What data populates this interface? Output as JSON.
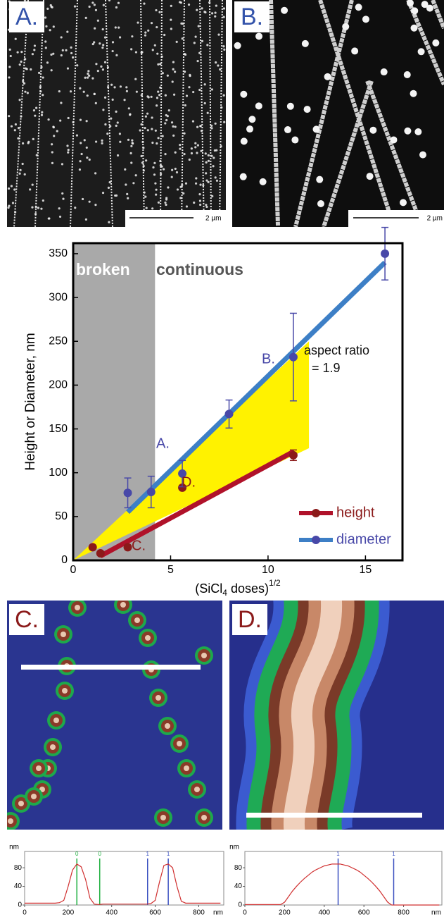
{
  "images": [
    {
      "label": "A.",
      "scale_bar": "2 µm"
    },
    {
      "label": "B.",
      "scale_bar": "2 µm"
    },
    {
      "label": "C."
    },
    {
      "label": "D."
    }
  ],
  "chart_data": [
    {
      "type": "scatter",
      "xlabel": [
        "(SiCl",
        "4",
        " doses)",
        "1/2"
      ],
      "ylabel": "Height or Diameter, nm",
      "xlim": [
        0,
        16.9
      ],
      "ylim": [
        0,
        362
      ],
      "xticks": [
        0,
        5,
        10,
        15
      ],
      "yticks": [
        0,
        50,
        100,
        150,
        200,
        250,
        300,
        350
      ],
      "broken_region": {
        "xlim": [
          0,
          4.2
        ],
        "color": "#a9a9a9"
      },
      "region_labels": [
        "broken",
        "continuous"
      ],
      "shaded_region": {
        "color": "#fff200",
        "x": [
          0,
          12.1,
          12.1
        ],
        "y": [
          0,
          250,
          128
        ]
      },
      "series": [
        {
          "name": "height",
          "color": "#8b1a1a",
          "line_color": "#b0122a",
          "x": [
            1.0,
            1.4,
            2.8,
            5.6,
            11.3
          ],
          "values": [
            15,
            8,
            15,
            83,
            120
          ],
          "errors": [
            null,
            null,
            null,
            null,
            6
          ],
          "fit_x": [
            1.4,
            11.3
          ],
          "fit_y": [
            5,
            124
          ]
        },
        {
          "name": "diameter",
          "color": "#4848a8",
          "line_color": "#3d7fc6",
          "x": [
            2.8,
            4.0,
            5.6,
            8.0,
            11.3,
            16.0
          ],
          "values": [
            77,
            78,
            99,
            167,
            232,
            350
          ],
          "errors": [
            17,
            18,
            15,
            16,
            50,
            30
          ],
          "fit_x": [
            2.8,
            16.0
          ],
          "fit_y": [
            55,
            340
          ]
        }
      ],
      "annotations": [
        {
          "text": "A.",
          "color": "#4848a8"
        },
        {
          "text": "B.",
          "color": "#4848a8"
        },
        {
          "text": "C.",
          "color": "#8b1a1a"
        },
        {
          "text": "D.",
          "color": "#8b1a1a"
        },
        {
          "text": "aspect ratio",
          "color": "#111"
        },
        {
          "text": "= 1.9",
          "color": "#111"
        }
      ],
      "legend": "lower right"
    },
    {
      "type": "line",
      "xlabel": "nm",
      "ylabel": "nm",
      "xlim": [
        0,
        915
      ],
      "ylim": [
        0,
        115
      ],
      "xticks": [
        0,
        200,
        400,
        600,
        800
      ],
      "yticks": [
        0,
        40,
        80
      ],
      "x": [
        0,
        20,
        40,
        60,
        80,
        100,
        120,
        140,
        160,
        180,
        200,
        220,
        240,
        260,
        280,
        300,
        320,
        340,
        360,
        380,
        400,
        420,
        440,
        460,
        480,
        500,
        520,
        540,
        560,
        580,
        600,
        620,
        640,
        660,
        680,
        700,
        720,
        740,
        760,
        780,
        800,
        820,
        840,
        860,
        880,
        900
      ],
      "series": [
        {
          "color": "#d03030",
          "values": [
            4,
            4,
            4,
            4,
            4,
            4,
            4,
            4,
            5,
            10,
            40,
            75,
            88,
            82,
            55,
            15,
            2,
            1,
            2,
            2,
            2,
            2,
            2,
            2,
            2,
            2,
            2,
            2,
            2,
            3,
            10,
            50,
            85,
            88,
            80,
            40,
            8,
            4,
            4,
            4,
            4,
            4,
            4,
            4,
            4,
            4
          ]
        }
      ],
      "markers": {
        "x": [
          240,
          345,
          565,
          660
        ],
        "labels": [
          "0",
          "0",
          "1",
          "1"
        ],
        "colors": [
          "#20b040",
          "#20b040",
          "#3a50c0",
          "#3a50c0"
        ]
      }
    },
    {
      "type": "line",
      "xlabel": "nm",
      "ylabel": "nm",
      "xlim": [
        0,
        993
      ],
      "ylim": [
        0,
        115
      ],
      "xticks": [
        0,
        200,
        400,
        600,
        800
      ],
      "yticks": [
        0,
        40,
        80
      ],
      "x": [
        0,
        20,
        40,
        60,
        80,
        100,
        120,
        140,
        160,
        180,
        200,
        220,
        240,
        260,
        280,
        300,
        320,
        340,
        360,
        380,
        400,
        420,
        440,
        460,
        480,
        500,
        520,
        540,
        560,
        580,
        600,
        620,
        640,
        660,
        680,
        700,
        720,
        740,
        760,
        780,
        800,
        820,
        840,
        860,
        880,
        900,
        920,
        940,
        960,
        980
      ],
      "series": [
        {
          "color": "#d03030",
          "values": [
            1,
            1,
            1,
            1,
            1,
            1,
            1,
            1,
            1,
            1,
            6,
            18,
            30,
            40,
            49,
            57,
            64,
            71,
            76,
            80,
            84,
            86,
            88,
            88,
            88,
            86,
            84,
            80,
            76,
            71,
            64,
            57,
            49,
            40,
            30,
            18,
            6,
            0,
            0,
            0,
            0,
            0,
            0,
            0,
            0,
            0,
            0,
            0,
            0,
            0
          ]
        }
      ],
      "markers": {
        "x": [
          470,
          750
        ],
        "labels": [
          "1",
          "1"
        ],
        "colors": [
          "#3a50c0",
          "#3a50c0"
        ]
      }
    }
  ]
}
